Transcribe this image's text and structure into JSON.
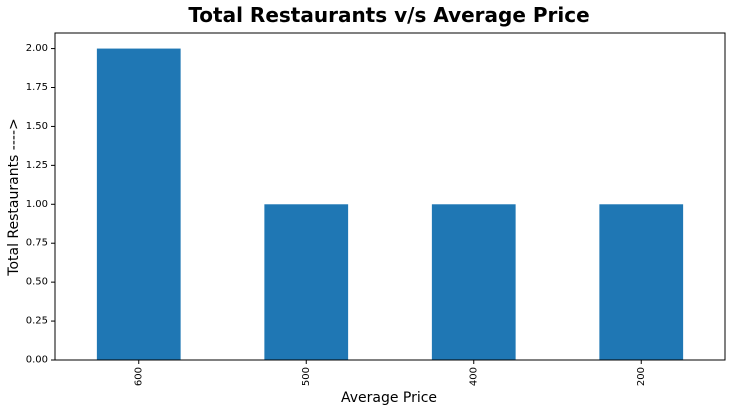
{
  "chart_data": {
    "type": "bar",
    "title": "Total Restaurants v/s Average Price",
    "xlabel": "Average Price",
    "ylabel": "Total Restaurants ---->",
    "categories": [
      "600",
      "500",
      "400",
      "200"
    ],
    "values": [
      2,
      1,
      1,
      1
    ],
    "ylim": [
      0,
      2.1
    ],
    "yticks": [
      "0.00",
      "0.25",
      "0.50",
      "0.75",
      "1.00",
      "1.25",
      "1.50",
      "1.75",
      "2.00"
    ],
    "bar_color": "#1f77b4",
    "grid": false,
    "legend": "none",
    "xtick_rotation": "vertical"
  }
}
